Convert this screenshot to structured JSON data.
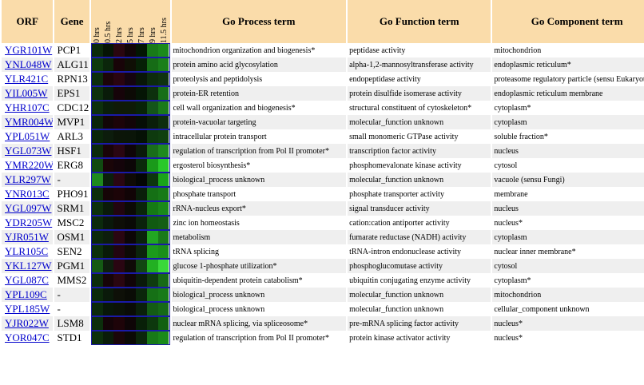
{
  "headers": {
    "orf": "ORF",
    "gene": "Gene",
    "times": [
      "0 hrs",
      "0.5 hrs",
      "2 hrs",
      "5 hrs",
      "7 hrs",
      "9 hrs",
      "11.5 hrs"
    ],
    "process": "Go Process term",
    "function": "Go Function term",
    "component": "Go Component term"
  },
  "rows": [
    {
      "orf": "YGR101W",
      "gene": "PCP1",
      "process": "mitochondrion organization and biogenesis*",
      "function": "peptidase activity",
      "component": "mitochondrion",
      "cells": [
        "#0b2a0b",
        "#061406",
        "#2a0610",
        "#120508",
        "#031603",
        "#197a19",
        "#1b8a1b"
      ]
    },
    {
      "orf": "YNL048W",
      "gene": "ALG11",
      "process": "protein amino acid glycosylation",
      "function": "alpha-1,2-mannosyltransferase activity",
      "component": "endoplasmic reticulum*",
      "cells": [
        "#0e3a0e",
        "#0b260b",
        "#180408",
        "#0f0f05",
        "#062006",
        "#166c16",
        "#1a7f1a"
      ]
    },
    {
      "orf": "YLR421C",
      "gene": "RPN13",
      "process": "proteolysis and peptidolysis",
      "function": "endopeptidase activity",
      "component": "proteasome regulatory particle (sensu Eukaryota)",
      "cells": [
        "#0c2e0c",
        "#1c0408",
        "#2a0410",
        "#150410",
        "#081608",
        "#0d2c0d",
        "#0f330f"
      ]
    },
    {
      "orf": "YIL005W",
      "gene": "EPS1",
      "process": "protein-ER retention",
      "function": "protein disulfide isomerase activity",
      "component": "endoplasmic reticulum membrane",
      "cells": [
        "#0d300d",
        "#091b09",
        "#160409",
        "#0c0a05",
        "#051505",
        "#0d300d",
        "#176e17"
      ]
    },
    {
      "orf": "YHR107C",
      "gene": "CDC12",
      "process": "cell wall organization and biogenesis*",
      "function": "structural constituent of cytoskeleton*",
      "component": "cytoplasm*",
      "cells": [
        "#0d300d",
        "#0a1e0a",
        "#0f1a07",
        "#0e1b07",
        "#082308",
        "#14551a",
        "#1a7a1a"
      ]
    },
    {
      "orf": "YMR004W",
      "gene": "MVP1",
      "process": "protein-vacuolar targeting",
      "function": "molecular_function unknown",
      "component": "cytoplasm",
      "cells": [
        "#0a240a",
        "#120607",
        "#1c0409",
        "#120508",
        "#060e06",
        "#0a1e0a",
        "#0d2d0d"
      ]
    },
    {
      "orf": "YPL051W",
      "gene": "ARL3",
      "process": "intracellular protein transport",
      "function": "small monomeric GTPase activity",
      "component": "soluble fraction*",
      "cells": [
        "#0a260a",
        "#0c1c0c",
        "#0b1508",
        "#0a1508",
        "#051105",
        "#0e3a0e",
        "#0f400f"
      ]
    },
    {
      "orf": "YGL073W",
      "gene": "HSF1",
      "process": "regulation of transcription from Pol II promoter*",
      "function": "transcription factor activity",
      "component": "nucleus",
      "cells": [
        "#0b2a0b",
        "#1a0408",
        "#2a0612",
        "#0f0508",
        "#0a1a0a",
        "#1a6e1a",
        "#1f8a1f"
      ]
    },
    {
      "orf": "YMR220W",
      "gene": "ERG8",
      "process": "ergosterol biosynthesis*",
      "function": "phosphomevalonate kinase activity",
      "component": "cytosol",
      "cells": [
        "#114a11",
        "#1a0508",
        "#14040a",
        "#0c0607",
        "#0b2a0b",
        "#1a9a1a",
        "#29c829"
      ]
    },
    {
      "orf": "YLR297W",
      "gene": "-",
      "process": "biological_process unknown",
      "function": "molecular_function unknown",
      "component": "vacuole (sensu Fungi)",
      "cells": [
        "#1e8a1e",
        "#0b1f0b",
        "#2a0612",
        "#0f0a06",
        "#040604",
        "#0d360d",
        "#1aa41a"
      ]
    },
    {
      "orf": "YNR013C",
      "gene": "PHO91",
      "process": "phosphate transport",
      "function": "phosphate transporter activity",
      "component": "membrane",
      "cells": [
        "#0c2e0c",
        "#160507",
        "#1c0408",
        "#110406",
        "#0a1e0a",
        "#157015",
        "#177a17"
      ]
    },
    {
      "orf": "YGL097W",
      "gene": "SRM1",
      "process": "rRNA-nucleus export*",
      "function": "signal transducer activity",
      "component": "nucleus",
      "cells": [
        "#0c300c",
        "#0a1a0a",
        "#220510",
        "#0c0a06",
        "#0a250a",
        "#157a15",
        "#1a8a1a"
      ]
    },
    {
      "orf": "YDR205W",
      "gene": "MSC2",
      "process": "zinc ion homeostasis",
      "function": "cation:cation antiporter activity",
      "component": "nucleus*",
      "cells": [
        "#0c2a0c",
        "#0a180a",
        "#0e0e07",
        "#0a0a06",
        "#0b220b",
        "#115a11",
        "#145e14"
      ]
    },
    {
      "orf": "YJR051W",
      "gene": "OSM1",
      "process": "metabolism",
      "function": "fumarate reductase (NADH) activity",
      "component": "cytoplasm",
      "cells": [
        "#0b280b",
        "#0d1d0d",
        "#2a0612",
        "#0d0607",
        "#0b220b",
        "#22a622",
        "#1a7a1a"
      ]
    },
    {
      "orf": "YLR105C",
      "gene": "SEN2",
      "process": "tRNA splicing",
      "function": "tRNA-intron endonuclease activity",
      "component": "nuclear inner membrane*",
      "cells": [
        "#0c300c",
        "#091a09",
        "#220510",
        "#0d0a06",
        "#0c240c",
        "#1c9a1c",
        "#1a8f1a"
      ]
    },
    {
      "orf": "YKL127W",
      "gene": "PGM1",
      "process": "glucose 1-phosphate utilization*",
      "function": "phosphoglucomutase activity",
      "component": "cytosol",
      "cells": [
        "#145a14",
        "#0e1e0e",
        "#2a0612",
        "#0f0a07",
        "#124512",
        "#22b022",
        "#3ad83a"
      ]
    },
    {
      "orf": "YGL087C",
      "gene": "MMS2",
      "process": "ubiquitin-dependent protein catabolism*",
      "function": "ubiquitin conjugating enzyme activity",
      "component": "cytoplasm*",
      "cells": [
        "#0c2c0c",
        "#170408",
        "#2a0610",
        "#110408",
        "#0a1a0a",
        "#0f3c0f",
        "#176a17"
      ]
    },
    {
      "orf": "YPL109C",
      "gene": "-",
      "process": "biological_process unknown",
      "function": "molecular_function unknown",
      "component": "mitochondrion",
      "cells": [
        "#0b2a0b",
        "#0a1a0a",
        "#0e1008",
        "#0a0c06",
        "#0b260b",
        "#167016",
        "#187a18"
      ]
    },
    {
      "orf": "YPL185W",
      "gene": "-",
      "process": "biological_process unknown",
      "function": "molecular_function unknown",
      "component": "cellular_component unknown",
      "cells": [
        "#0b2a0b",
        "#081708",
        "#0b1207",
        "#0a0c06",
        "#0a200a",
        "#145c14",
        "#166a16"
      ]
    },
    {
      "orf": "YJR022W",
      "gene": "LSM8",
      "process": "nuclear mRNA splicing, via spliceosome*",
      "function": "pre-mRNA splicing factor activity",
      "component": "nucleus*",
      "cells": [
        "#0c2e0c",
        "#140408",
        "#1e0409",
        "#0e0507",
        "#082008",
        "#0d380d",
        "#116011"
      ]
    },
    {
      "orf": "YOR047C",
      "gene": "STD1",
      "process": "regulation of transcription from Pol II promoter*",
      "function": "protein kinase activator activity",
      "component": "nucleus*",
      "cells": [
        "#0c300c",
        "#0a1c0a",
        "#1a060a",
        "#0b0a06",
        "#0b260b",
        "#187a18",
        "#1a8a1a"
      ]
    }
  ]
}
